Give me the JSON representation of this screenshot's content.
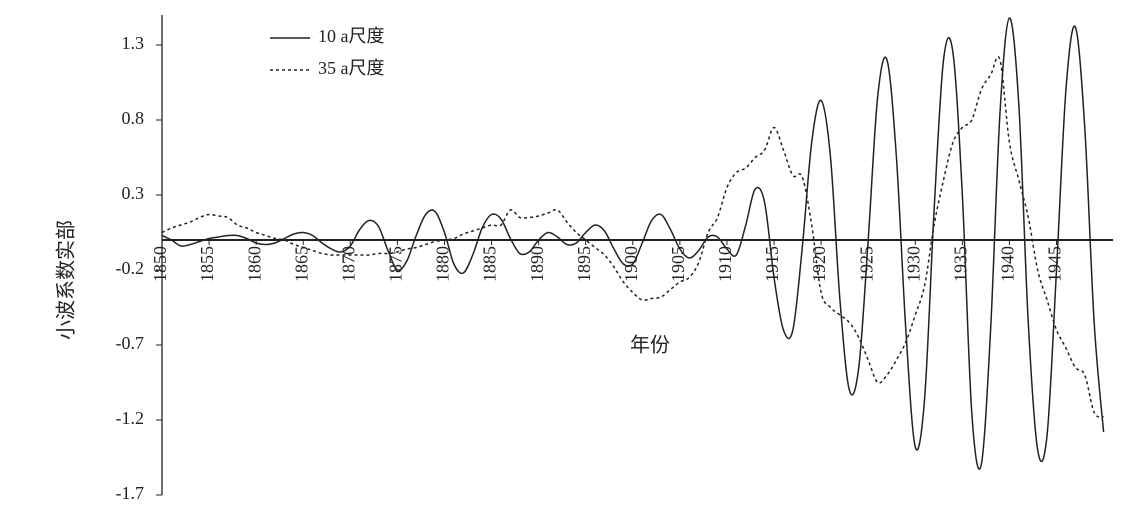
{
  "chart_data": {
    "type": "line",
    "x_label": "年份",
    "y_label": "小波系数实部",
    "x": [
      1850,
      1851,
      1852,
      1853,
      1854,
      1855,
      1856,
      1857,
      1858,
      1859,
      1860,
      1861,
      1862,
      1863,
      1864,
      1865,
      1866,
      1867,
      1868,
      1869,
      1870,
      1871,
      1872,
      1873,
      1874,
      1875,
      1876,
      1877,
      1878,
      1879,
      1880,
      1881,
      1882,
      1883,
      1884,
      1885,
      1886,
      1887,
      1888,
      1889,
      1890,
      1891,
      1892,
      1893,
      1894,
      1895,
      1896,
      1897,
      1898,
      1899,
      1900,
      1901,
      1902,
      1903,
      1904,
      1905,
      1906,
      1907,
      1908,
      1909,
      1910,
      1911,
      1912,
      1913,
      1914,
      1915,
      1916,
      1917,
      1918,
      1919,
      1920,
      1921,
      1922,
      1923,
      1924,
      1925,
      1926,
      1927,
      1928,
      1929,
      1930,
      1931,
      1932,
      1933,
      1934,
      1935,
      1936,
      1937,
      1938,
      1939,
      1940,
      1941,
      1942,
      1943,
      1944,
      1945,
      1946,
      1947,
      1948,
      1949,
      1950
    ],
    "series": [
      {
        "name": "10 a尺度",
        "color": "#222222",
        "line_style": "solid",
        "values": [
          0.03,
          0.0,
          -0.04,
          -0.03,
          -0.01,
          0.01,
          0.02,
          0.03,
          0.03,
          0.01,
          -0.02,
          -0.03,
          -0.02,
          0.01,
          0.04,
          0.05,
          0.03,
          -0.02,
          -0.06,
          -0.08,
          -0.04,
          0.07,
          0.13,
          0.09,
          -0.07,
          -0.2,
          -0.14,
          0.03,
          0.17,
          0.19,
          0.05,
          -0.16,
          -0.22,
          -0.1,
          0.08,
          0.17,
          0.14,
          0.01,
          -0.09,
          -0.08,
          0.0,
          0.05,
          0.02,
          -0.03,
          -0.02,
          0.05,
          0.1,
          0.06,
          -0.06,
          -0.16,
          -0.16,
          -0.02,
          0.13,
          0.17,
          0.07,
          -0.06,
          -0.12,
          -0.07,
          0.02,
          0.02,
          -0.06,
          -0.1,
          0.1,
          0.34,
          0.25,
          -0.25,
          -0.6,
          -0.6,
          -0.05,
          0.65,
          0.93,
          0.55,
          -0.4,
          -1.0,
          -0.85,
          0.0,
          0.95,
          1.2,
          0.55,
          -0.6,
          -1.38,
          -1.05,
          0.2,
          1.2,
          1.25,
          0.3,
          -1.15,
          -1.5,
          -0.6,
          0.85,
          1.48,
          0.9,
          -0.55,
          -1.4,
          -1.3,
          -0.2,
          1.0,
          1.42,
          0.75,
          -0.55,
          -1.28
        ]
      },
      {
        "name": "35 a尺度",
        "color": "#222222",
        "line_style": "dotted",
        "values": [
          0.05,
          0.08,
          0.1,
          0.12,
          0.15,
          0.17,
          0.16,
          0.15,
          0.1,
          0.08,
          0.05,
          0.03,
          0.01,
          0.0,
          -0.03,
          -0.05,
          -0.07,
          -0.09,
          -0.1,
          -0.1,
          -0.1,
          -0.1,
          -0.1,
          -0.09,
          -0.09,
          -0.08,
          -0.06,
          -0.05,
          -0.03,
          -0.01,
          0.0,
          0.01,
          0.04,
          0.06,
          0.08,
          0.1,
          0.1,
          0.2,
          0.15,
          0.15,
          0.16,
          0.18,
          0.2,
          0.12,
          0.05,
          0.0,
          -0.05,
          -0.1,
          -0.18,
          -0.28,
          -0.35,
          -0.4,
          -0.39,
          -0.38,
          -0.33,
          -0.28,
          -0.25,
          -0.15,
          0.05,
          0.15,
          0.35,
          0.45,
          0.48,
          0.55,
          0.6,
          0.75,
          0.6,
          0.43,
          0.42,
          0.1,
          -0.35,
          -0.45,
          -0.5,
          -0.55,
          -0.65,
          -0.8,
          -0.95,
          -0.9,
          -0.8,
          -0.68,
          -0.5,
          -0.3,
          0.1,
          0.4,
          0.65,
          0.75,
          0.8,
          1.0,
          1.1,
          1.2,
          0.65,
          0.4,
          0.15,
          -0.2,
          -0.4,
          -0.6,
          -0.72,
          -0.85,
          -0.9,
          -1.15,
          -1.18
        ]
      }
    ],
    "xlim": [
      1850,
      1951
    ],
    "xticks": [
      1850,
      1855,
      1860,
      1865,
      1870,
      1875,
      1880,
      1885,
      1890,
      1895,
      1900,
      1905,
      1910,
      1915,
      1920,
      1925,
      1930,
      1935,
      1940,
      1945
    ],
    "ylim": [
      -1.7,
      1.5
    ],
    "yticks": [
      -1.7,
      -1.2,
      -0.7,
      -0.2,
      0.3,
      0.8,
      1.3
    ],
    "grid": false,
    "legend": "upper left"
  }
}
